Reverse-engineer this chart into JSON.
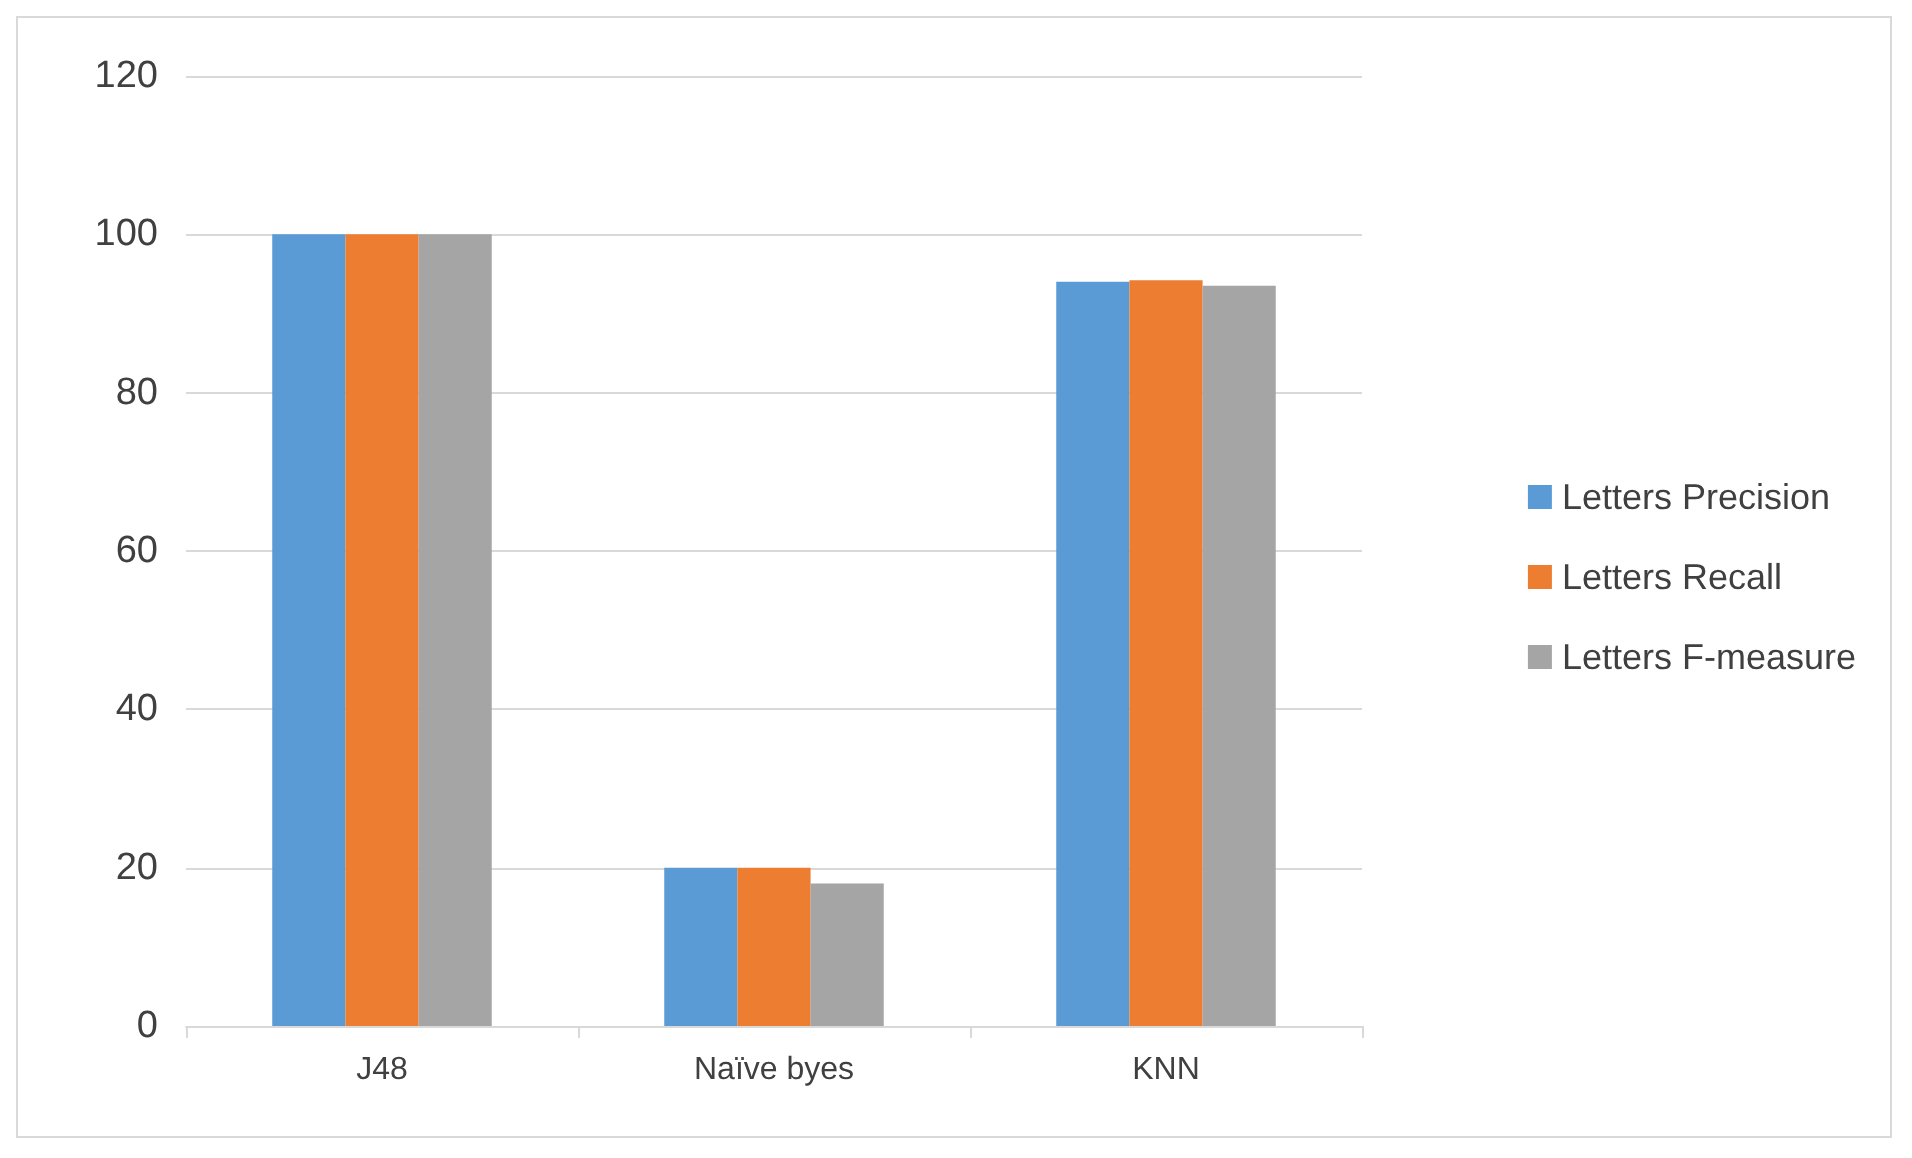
{
  "chart_data": {
    "type": "bar",
    "categories": [
      "J48",
      "Naïve byes",
      "KNN"
    ],
    "series": [
      {
        "name": "Letters Precision",
        "color": "#5b9bd5",
        "values": [
          100,
          20,
          94
        ]
      },
      {
        "name": "Letters Recall",
        "color": "#ed7d31",
        "values": [
          100,
          20,
          94.2
        ]
      },
      {
        "name": "Letters F-measure",
        "color": "#a5a5a5",
        "values": [
          100,
          18,
          93.5
        ]
      }
    ],
    "ylim": [
      0,
      120
    ],
    "yticks": [
      0,
      20,
      40,
      60,
      80,
      100,
      120
    ],
    "grid": "y",
    "legend": "right"
  }
}
